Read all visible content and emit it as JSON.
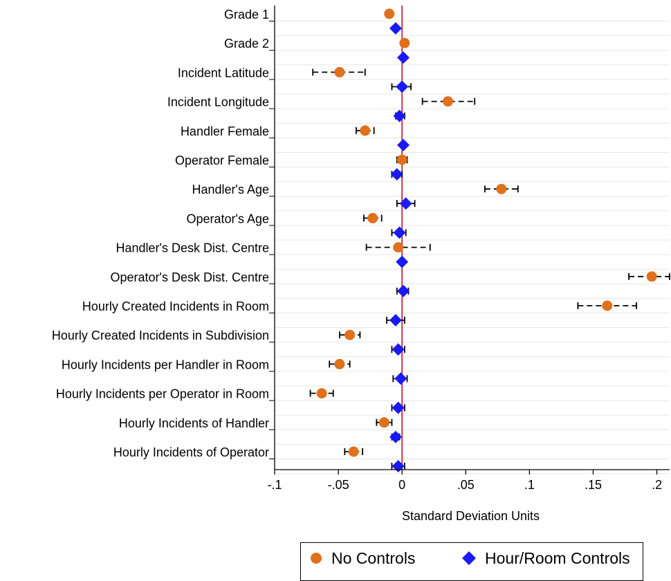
{
  "chart_data": {
    "type": "scatter",
    "xlabel": "Standard Deviation Units",
    "xlim": [
      -0.1,
      0.21
    ],
    "xticks": [
      -0.1,
      -0.05,
      0,
      0.05,
      0.1,
      0.15,
      0.2
    ],
    "xtick_labels": [
      "-.1",
      "-.05",
      "0",
      ".05",
      ".1",
      ".15",
      ".2"
    ],
    "reference_line": 0,
    "legend_position": "bottom",
    "categories": [
      "Grade 1",
      "Grade 2",
      "Incident Latitude",
      "Incident Longitude",
      "Handler Female",
      "Operator Female",
      "Handler's Age",
      "Operator's Age",
      "Handler's Desk Dist. Centre",
      "Operator's Desk Dist. Centre",
      "Hourly Created Incidents in Room",
      "Hourly Created Incidents in Subdivision",
      "Hourly Incidents per Handler in Room",
      "Hourly Incidents per Operator in Room",
      "Hourly Incidents of Handler",
      "Hourly Incidents of Operator"
    ],
    "series": [
      {
        "name": "No Controls",
        "color": "#e0711c",
        "marker": "circle",
        "values": [
          -0.01,
          0.002,
          -0.049,
          0.036,
          -0.029,
          0.0,
          0.078,
          -0.023,
          -0.003,
          0.196,
          0.161,
          -0.041,
          -0.049,
          -0.063,
          -0.014,
          -0.038
        ],
        "ci_low": [
          null,
          null,
          -0.07,
          0.016,
          -0.036,
          -0.004,
          0.065,
          -0.03,
          -0.028,
          0.178,
          0.138,
          -0.049,
          -0.057,
          -0.072,
          -0.02,
          -0.045
        ],
        "ci_high": [
          null,
          null,
          -0.029,
          0.057,
          -0.022,
          0.004,
          0.091,
          -0.016,
          0.022,
          0.21,
          0.184,
          -0.033,
          -0.041,
          -0.054,
          -0.008,
          -0.031
        ]
      },
      {
        "name": "Hour/Room Controls",
        "color": "#1a1af5",
        "marker": "diamond",
        "values": [
          -0.005,
          0.001,
          0.0,
          -0.002,
          0.001,
          -0.004,
          0.003,
          -0.002,
          0.0,
          0.001,
          -0.005,
          -0.003,
          -0.001,
          -0.003,
          -0.005,
          -0.003
        ],
        "ci_low": [
          null,
          null,
          -0.008,
          -0.005,
          null,
          -0.008,
          -0.004,
          -0.008,
          null,
          -0.004,
          -0.012,
          -0.008,
          -0.007,
          -0.008,
          -0.008,
          -0.008
        ],
        "ci_high": [
          null,
          null,
          0.007,
          0.002,
          null,
          0.0,
          0.01,
          0.003,
          null,
          0.005,
          0.002,
          0.002,
          0.004,
          0.002,
          -0.002,
          0.002
        ]
      }
    ]
  },
  "legend": {
    "items": [
      {
        "label": "No Controls",
        "icon": "orange-circle-icon",
        "color": "#e0711c"
      },
      {
        "label": "Hour/Room Controls",
        "icon": "blue-diamond-icon",
        "color": "#1a1af5"
      }
    ]
  }
}
